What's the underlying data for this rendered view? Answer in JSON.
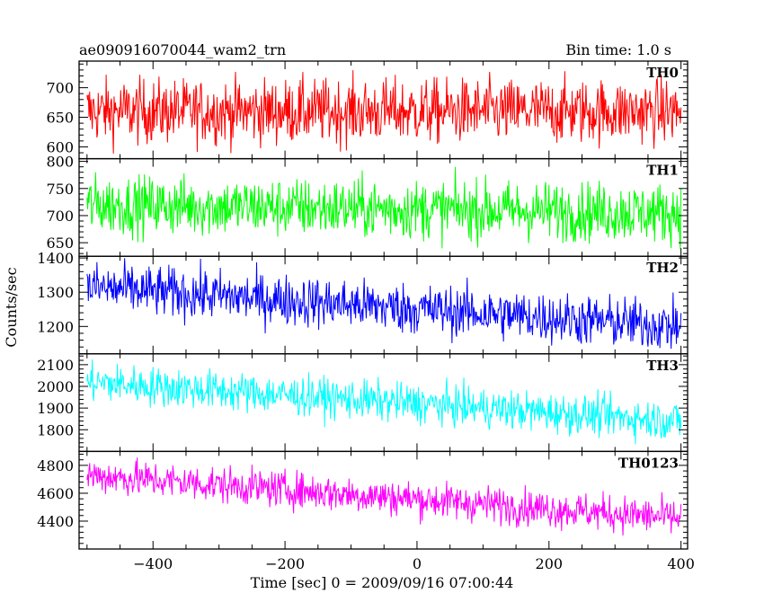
{
  "title_left": "ae090916070044_wam2_trn",
  "title_right": "Bin time: 1.0 s",
  "xlabel": "Time [sec] 0 = 2009/09/16 07:00:44",
  "ylabel": "Counts/sec",
  "chart_data": {
    "type": "line",
    "x": {
      "start": -500,
      "end": 400,
      "step": 1
    },
    "xlim": [
      -512,
      410
    ],
    "xticks": [
      -400,
      -200,
      0,
      200,
      400
    ],
    "panels": [
      {
        "name": "TH0",
        "color": "#ff0000",
        "ylim": [
          580,
          745
        ],
        "yticks": [
          600,
          650,
          700
        ],
        "trend": [
          [
            -500,
            660
          ],
          [
            400,
            660
          ]
        ],
        "noise": 27
      },
      {
        "name": "TH1",
        "color": "#00ff00",
        "ylim": [
          625,
          805
        ],
        "yticks": [
          650,
          700,
          750,
          800
        ],
        "trend": [
          [
            -500,
            720
          ],
          [
            400,
            705
          ]
        ],
        "noise": 27
      },
      {
        "name": "TH2",
        "color": "#0000ff",
        "ylim": [
          1120,
          1405
        ],
        "yticks": [
          1200,
          1300,
          1400
        ],
        "trend": [
          [
            -500,
            1315
          ],
          [
            400,
            1200
          ]
        ],
        "noise": 37
      },
      {
        "name": "TH3",
        "color": "#00ffff",
        "ylim": [
          1700,
          2150
        ],
        "yticks": [
          1800,
          1900,
          2000,
          2100
        ],
        "trend": [
          [
            -500,
            2020
          ],
          [
            400,
            1840
          ]
        ],
        "noise": 45
      },
      {
        "name": "TH0123",
        "color": "#ff00ff",
        "ylim": [
          4200,
          4900
        ],
        "yticks": [
          4400,
          4600,
          4800
        ],
        "trend": [
          [
            -500,
            4730
          ],
          [
            400,
            4420
          ]
        ],
        "noise": 65
      }
    ]
  }
}
